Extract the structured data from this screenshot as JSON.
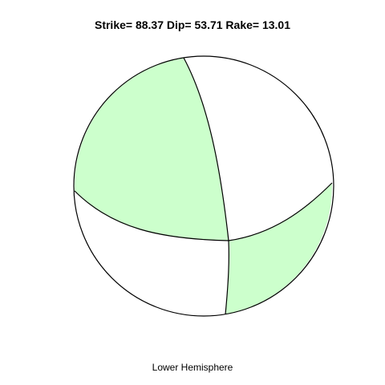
{
  "title": "Strike= 88.37 Dip= 53.71 Rake= 13.01",
  "subtitle": "Lower Hemisphere",
  "colors": {
    "compressional": "#ccffcc",
    "dilatational": "#ffffff",
    "outline": "#000000"
  },
  "mechanism": {
    "strike": 88.37,
    "dip": 53.71,
    "rake": 13.01,
    "projection": "lower-hemisphere"
  }
}
